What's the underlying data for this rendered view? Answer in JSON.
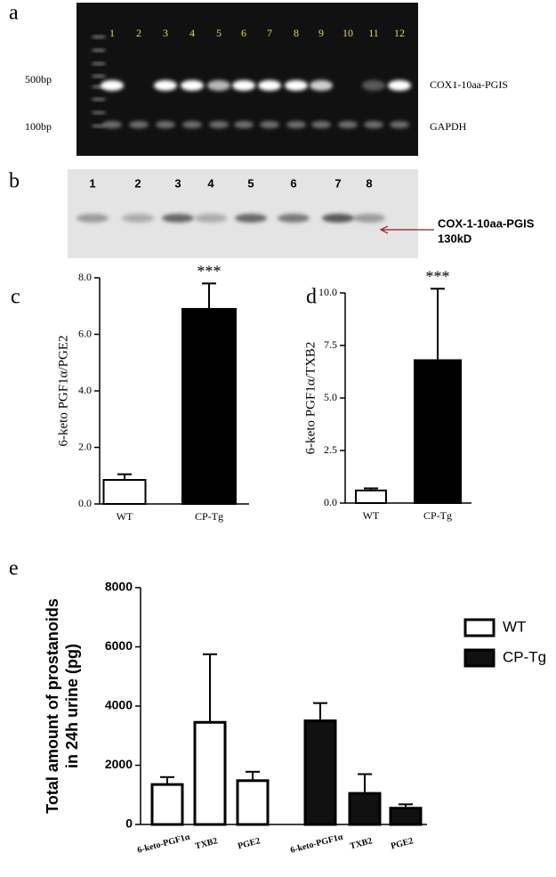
{
  "panel_labels": [
    "a",
    "b",
    "c",
    "d",
    "e"
  ],
  "gel_a": {
    "lanes": [
      "1",
      "2",
      "3",
      "4",
      "5",
      "6",
      "7",
      "8",
      "9",
      "10",
      "11",
      "12"
    ],
    "markers": [
      "500bp",
      "100bp"
    ],
    "band_labels": [
      "COX1-10aa-PGIS",
      "GAPDH"
    ]
  },
  "gel_b": {
    "lanes": [
      "1",
      "2",
      "3",
      "4",
      "5",
      "6",
      "7",
      "8"
    ],
    "band_labels": [
      "COX-1-10aa-PGIS",
      "130kD"
    ]
  },
  "chart_data": [
    {
      "type": "bar",
      "ylabel": "6-keto PGF1α/PGE2",
      "categories": [
        "WT",
        "CP-Tg"
      ],
      "values": [
        0.85,
        6.9
      ],
      "errors": [
        0.2,
        0.9
      ],
      "colors": [
        "#ffffff",
        "#000000"
      ],
      "annotation": "***",
      "ylim": [
        0,
        8
      ],
      "yticks": [
        {
          "value": 0,
          "label": "0.0"
        },
        {
          "value": 2,
          "label": "2.0"
        },
        {
          "value": 4,
          "label": "4.0"
        },
        {
          "value": 6,
          "label": "6.0"
        },
        {
          "value": 8,
          "label": "8.0"
        }
      ]
    },
    {
      "type": "bar",
      "ylabel": "6-keto PGF1α/TXB2",
      "categories": [
        "WT",
        "CP-Tg"
      ],
      "values": [
        0.6,
        6.8
      ],
      "errors": [
        0.1,
        3.4
      ],
      "colors": [
        "#ffffff",
        "#000000"
      ],
      "annotation": "***",
      "ylim": [
        0,
        10
      ],
      "yticks": [
        {
          "value": 0,
          "label": "0.0"
        },
        {
          "value": 2.5,
          "label": "2.5"
        },
        {
          "value": 5,
          "label": "5.0"
        },
        {
          "value": 7.5,
          "label": "7.5"
        },
        {
          "value": 10,
          "label": "10.0"
        }
      ]
    },
    {
      "type": "grouped_bar",
      "ylabel": [
        "Total amount of prostanoids",
        "in 24h urine (pg)"
      ],
      "categories": [
        "6-keto-PGF1α",
        "TXB2",
        "PGE2"
      ],
      "series": [
        {
          "name": "WT",
          "color": "#ffffff",
          "values": [
            1350,
            3450,
            1480
          ],
          "errors": [
            250,
            2300,
            300
          ]
        },
        {
          "name": "CP-Tg",
          "color": "#111111",
          "values": [
            3500,
            1050,
            550
          ],
          "errors": [
            600,
            650,
            130
          ]
        }
      ],
      "ylim": [
        0,
        8000
      ],
      "yticks": [
        0,
        2000,
        4000,
        6000,
        8000
      ],
      "legend": "top-right"
    }
  ]
}
